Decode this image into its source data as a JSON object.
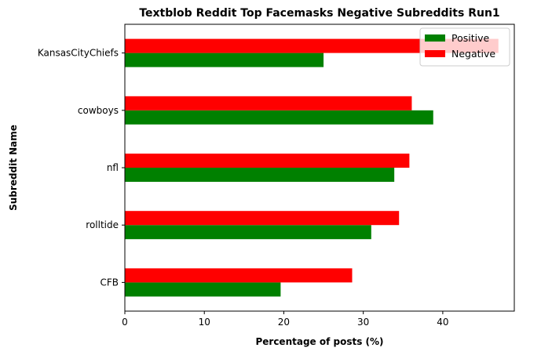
{
  "chart_data": {
    "type": "bar",
    "orientation": "horizontal",
    "title": "Textblob Reddit Top Facemasks Negative Subreddits Run1",
    "xlabel": "Percentage of posts (%)",
    "ylabel": "Subreddit Name",
    "categories": [
      "CFB",
      "rolltide",
      "nfl",
      "cowboys",
      "KansasCityChiefs"
    ],
    "series": [
      {
        "name": "Positive",
        "color": "#008000",
        "values": [
          19.6,
          31.0,
          33.9,
          38.8,
          25.0
        ]
      },
      {
        "name": "Negative",
        "color": "#ff0000",
        "values": [
          28.6,
          34.5,
          35.8,
          36.1,
          47.0
        ]
      }
    ],
    "xlim": [
      0,
      49
    ],
    "xticks": [
      0,
      10,
      20,
      30,
      40
    ],
    "grid": false,
    "legend_position": "top-right"
  }
}
